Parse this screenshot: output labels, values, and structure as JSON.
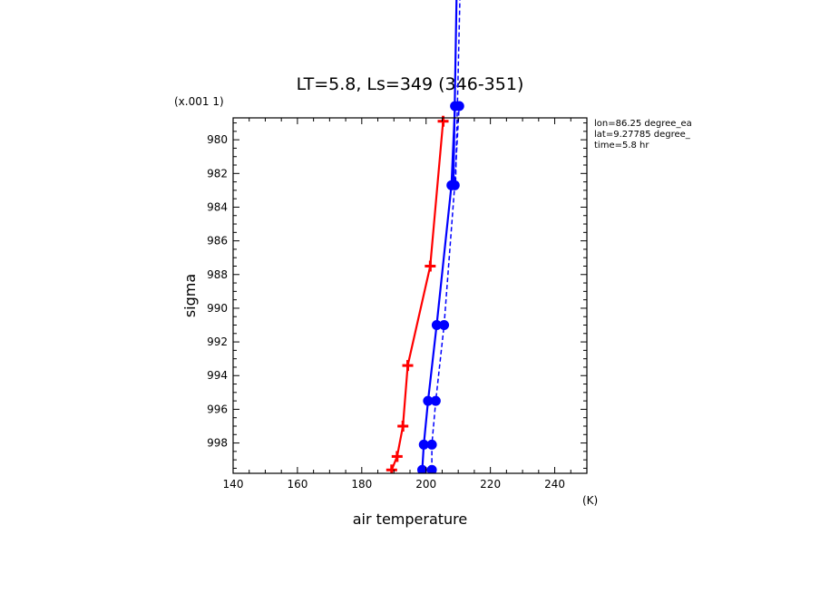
{
  "chart_data": {
    "type": "line",
    "title": "LT=5.8, Ls=349 (346-351)",
    "xlabel": "air temperature",
    "xunit": "(K)",
    "ylabel": "sigma",
    "yscale_note": "(x.001 1)",
    "xlim": [
      140,
      250
    ],
    "ylim": [
      999.8,
      978.7
    ],
    "xticks": [
      140,
      160,
      180,
      200,
      220,
      240
    ],
    "yticks": [
      980,
      982,
      984,
      986,
      988,
      990,
      992,
      994,
      996,
      998
    ],
    "info": [
      "lon=86.25 degree_ea",
      "lat=9.27785 degree_",
      "time=5.8 hr"
    ],
    "series": [
      {
        "color": "#ff0000",
        "style": "solid",
        "marker": "plus",
        "points": [
          [
            189.3,
            999.6
          ],
          [
            191.0,
            998.8
          ],
          [
            192.8,
            997.0
          ],
          [
            194.3,
            993.4
          ],
          [
            201.3,
            987.5
          ],
          [
            205.3,
            978.9
          ]
        ]
      },
      {
        "color": "#0000ff",
        "style": "solid",
        "marker": "circle",
        "points": [
          [
            198.8,
            999.6
          ],
          [
            199.3,
            998.1
          ],
          [
            200.6,
            995.5
          ],
          [
            203.3,
            991.0
          ],
          [
            207.9,
            982.7
          ],
          [
            209.0,
            978.0
          ]
        ]
      },
      {
        "color": "#0000ff",
        "style": "dash",
        "marker": "circle",
        "points": [
          [
            201.8,
            999.6
          ],
          [
            201.8,
            998.1
          ],
          [
            203.0,
            995.5
          ],
          [
            205.6,
            991.0
          ],
          [
            208.9,
            982.7
          ],
          [
            210.3,
            978.0
          ]
        ]
      },
      {
        "color": "#0000ff",
        "style": "solid",
        "marker": "none",
        "points": [
          [
            208.5,
            982.5
          ],
          [
            209.6,
            970.0
          ]
        ]
      },
      {
        "color": "#0000ff",
        "style": "dash",
        "marker": "none",
        "points": [
          [
            209.2,
            982.5
          ],
          [
            210.7,
            970.0
          ]
        ]
      }
    ]
  }
}
